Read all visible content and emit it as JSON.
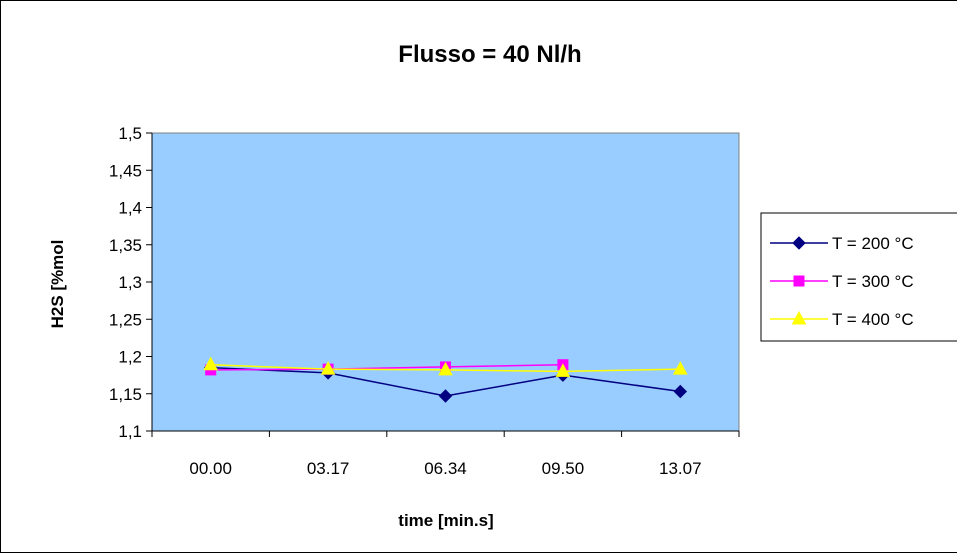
{
  "chart_data": {
    "type": "line",
    "title": "Flusso = 40 Nl/h",
    "xlabel": "time [min.s]",
    "ylabel": "H2S [%mol",
    "categories": [
      "00.00",
      "03.17",
      "06.34",
      "09.50",
      "13.07"
    ],
    "yticks": [
      "1,1",
      "1,15",
      "1,2",
      "1,25",
      "1,3",
      "1,35",
      "1,4",
      "1,45",
      "1,5"
    ],
    "ylim": [
      1.1,
      1.5
    ],
    "ytick_step": 0.05,
    "grid": false,
    "legend_position": "right",
    "plot_background": "#99ccff",
    "series": [
      {
        "name": "T = 200 °C",
        "color": "#000080",
        "marker": "diamond",
        "values": [
          1.185,
          1.178,
          1.147,
          1.175,
          1.153
        ]
      },
      {
        "name": "T = 300 °C",
        "color": "#ff00ff",
        "marker": "square",
        "values": [
          1.182,
          1.183,
          1.186,
          1.189,
          null
        ]
      },
      {
        "name": "T = 400 °C",
        "color": "#ffff00",
        "marker": "triangle",
        "values": [
          1.189,
          1.183,
          1.182,
          1.18,
          1.183
        ]
      }
    ]
  }
}
